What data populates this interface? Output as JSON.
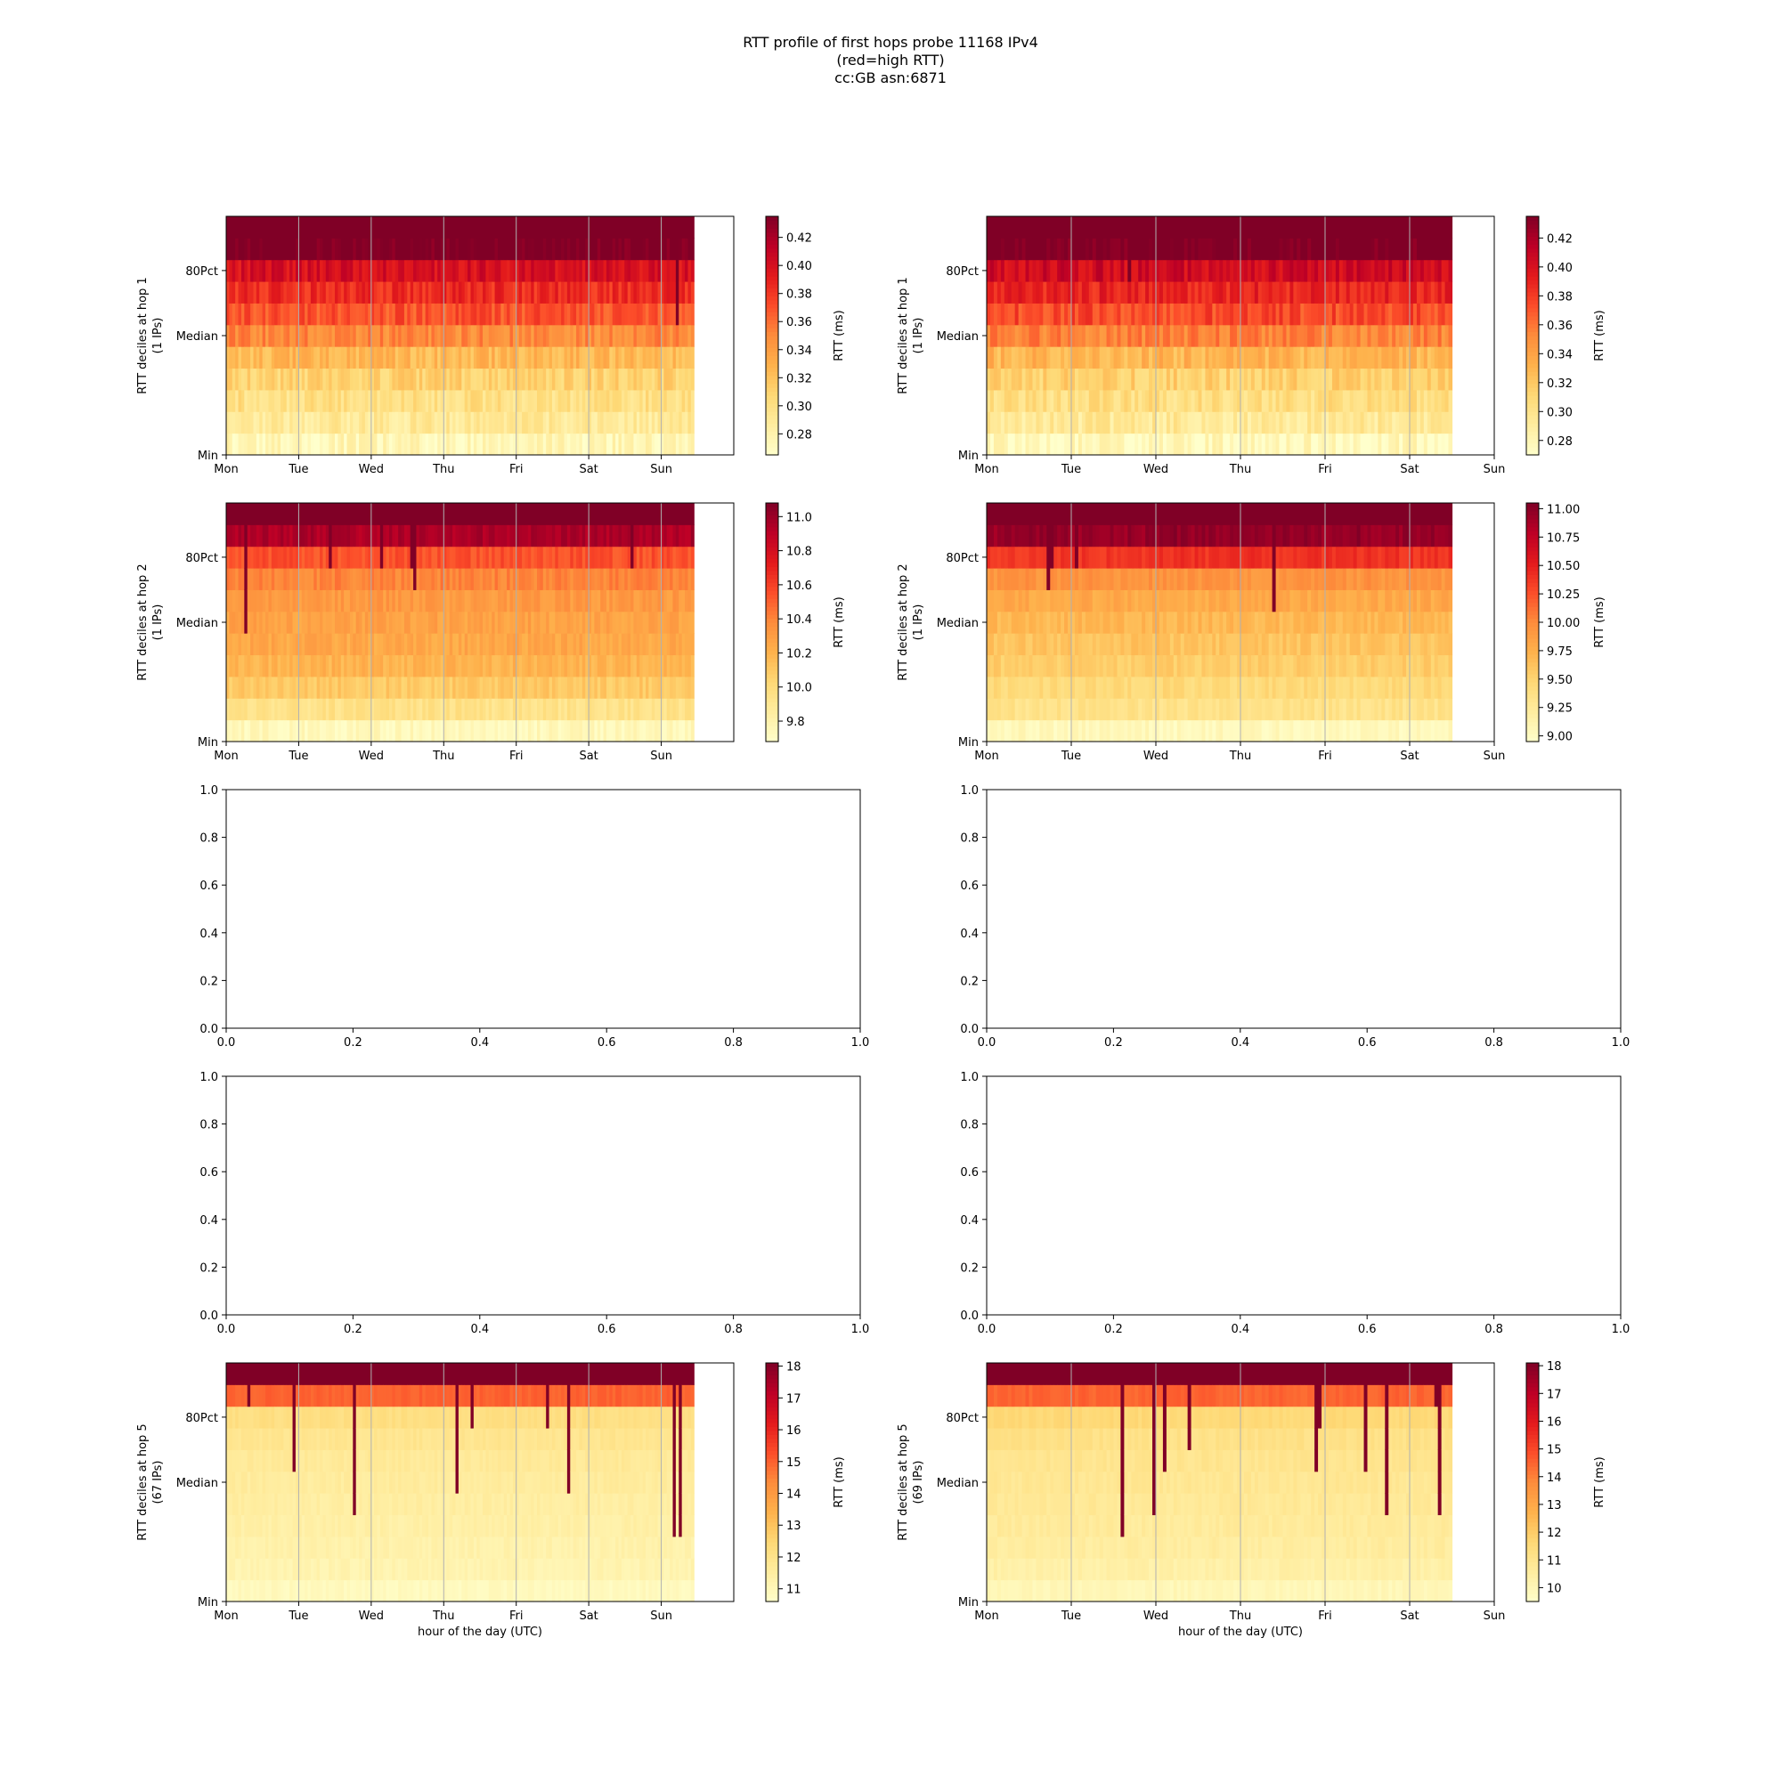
{
  "figure": {
    "title_lines": [
      "RTT profile of first hops probe 11168 IPv4",
      "(red=high RTT)",
      "cc:GB asn:6871"
    ]
  },
  "chart_data": [
    {
      "type": "heatmap",
      "name": "hop 1 left",
      "ylabel_lines": [
        "RTT deciles at hop 1",
        "(1 IPs)"
      ],
      "xlabel": "",
      "xticks": [
        "Mon",
        "Tue",
        "Wed",
        "Thu",
        "Fri",
        "Sat",
        "Sun"
      ],
      "yticks": [
        "Min",
        "Median",
        "80Pct"
      ],
      "x_range_days": [
        0,
        7
      ],
      "data_coverage_days": 6.45,
      "colorbar": {
        "label": "RTT (ms)",
        "min": 0.265,
        "max": 0.435,
        "ticks": [
          "0.28",
          "0.30",
          "0.32",
          "0.34",
          "0.36",
          "0.38",
          "0.40",
          "0.42"
        ],
        "tick_values": [
          0.28,
          0.3,
          0.32,
          0.34,
          0.36,
          0.38,
          0.4,
          0.42
        ]
      },
      "decile_values": [
        0.275,
        0.29,
        0.3,
        0.31,
        0.325,
        0.35,
        0.37,
        0.385,
        0.4,
        0.44,
        0.5
      ],
      "noise": 0.012,
      "spike_prob": 0.01,
      "spike_rows": 4
    },
    {
      "type": "heatmap",
      "name": "hop 1 right",
      "ylabel_lines": [
        "RTT deciles at hop 1",
        "(1 IPs)"
      ],
      "xlabel": "",
      "xticks": [
        "Mon",
        "Tue",
        "Wed",
        "Thu",
        "Fri",
        "Sat",
        "Sun"
      ],
      "yticks": [
        "Min",
        "Median",
        "80Pct"
      ],
      "x_range_days": [
        0,
        6
      ],
      "data_coverage_days": 5.5,
      "colorbar": {
        "label": "RTT (ms)",
        "min": 0.27,
        "max": 0.435,
        "ticks": [
          "0.28",
          "0.30",
          "0.32",
          "0.34",
          "0.36",
          "0.38",
          "0.40",
          "0.42"
        ],
        "tick_values": [
          0.28,
          0.3,
          0.32,
          0.34,
          0.36,
          0.38,
          0.4,
          0.42
        ]
      },
      "decile_values": [
        0.278,
        0.295,
        0.305,
        0.315,
        0.33,
        0.355,
        0.375,
        0.39,
        0.405,
        0.44,
        0.5
      ],
      "noise": 0.012,
      "spike_prob": 0.01,
      "spike_rows": 4
    },
    {
      "type": "heatmap",
      "name": "hop 2 left",
      "ylabel_lines": [
        "RTT deciles at hop 2",
        "(1 IPs)"
      ],
      "xlabel": "",
      "xticks": [
        "Mon",
        "Tue",
        "Wed",
        "Thu",
        "Fri",
        "Sat",
        "Sun"
      ],
      "yticks": [
        "Min",
        "Median",
        "80Pct"
      ],
      "x_range_days": [
        0,
        7
      ],
      "data_coverage_days": 6.45,
      "colorbar": {
        "label": "RTT (ms)",
        "min": 9.68,
        "max": 11.08,
        "ticks": [
          "9.8",
          "10.0",
          "10.2",
          "10.4",
          "10.6",
          "10.8",
          "11.0"
        ],
        "tick_values": [
          9.8,
          10.0,
          10.2,
          10.4,
          10.6,
          10.8,
          11.0
        ]
      },
      "decile_values": [
        9.75,
        9.95,
        10.1,
        10.2,
        10.25,
        10.28,
        10.32,
        10.4,
        10.55,
        10.95,
        11.2
      ],
      "noise": 0.06,
      "spike_prob": 0.06,
      "spike_rows": 6
    },
    {
      "type": "heatmap",
      "name": "hop 2 right",
      "ylabel_lines": [
        "RTT deciles at hop 2",
        "(1 IPs)"
      ],
      "xlabel": "",
      "xticks": [
        "Mon",
        "Tue",
        "Wed",
        "Thu",
        "Fri",
        "Sat",
        "Sun"
      ],
      "yticks": [
        "Min",
        "Median",
        "80Pct"
      ],
      "x_range_days": [
        0,
        6
      ],
      "data_coverage_days": 5.5,
      "colorbar": {
        "label": "RTT (ms)",
        "min": 8.95,
        "max": 11.05,
        "ticks": [
          "9.00",
          "9.25",
          "9.50",
          "9.75",
          "10.00",
          "10.25",
          "10.50",
          "10.75",
          "11.00"
        ],
        "tick_values": [
          9.0,
          9.25,
          9.5,
          9.75,
          10.0,
          10.25,
          10.5,
          10.75,
          11.0
        ]
      },
      "decile_values": [
        9.05,
        9.35,
        9.45,
        9.55,
        9.62,
        9.7,
        9.8,
        9.95,
        10.4,
        10.95,
        11.2
      ],
      "noise": 0.08,
      "spike_prob": 0.06,
      "spike_rows": 6
    },
    {
      "type": "heatmap",
      "name": "hop 5 left",
      "ylabel_lines": [
        "RTT deciles at hop 5",
        "(67 IPs)"
      ],
      "xlabel": "hour of the day (UTC)",
      "xticks": [
        "Mon",
        "Tue",
        "Wed",
        "Thu",
        "Fri",
        "Sat",
        "Sun"
      ],
      "yticks": [
        "Min",
        "Median",
        "80Pct"
      ],
      "x_range_days": [
        0,
        7
      ],
      "data_coverage_days": 6.45,
      "colorbar": {
        "label": "RTT (ms)",
        "min": 10.6,
        "max": 18.1,
        "ticks": [
          "11",
          "12",
          "13",
          "14",
          "15",
          "16",
          "17",
          "18"
        ],
        "tick_values": [
          11,
          12,
          13,
          14,
          15,
          16,
          17,
          18
        ]
      },
      "decile_values": [
        10.9,
        11.2,
        11.3,
        11.4,
        11.5,
        11.6,
        11.7,
        11.9,
        12.2,
        15.0,
        19.0
      ],
      "noise": 0.15,
      "spike_prob": 0.07,
      "spike_rows": 7
    },
    {
      "type": "heatmap",
      "name": "hop 5 right",
      "ylabel_lines": [
        "RTT deciles at hop 5",
        "(69 IPs)"
      ],
      "xlabel": "hour of the day (UTC)",
      "xticks": [
        "Mon",
        "Tue",
        "Wed",
        "Thu",
        "Fri",
        "Sat",
        "Sun"
      ],
      "yticks": [
        "Min",
        "Median",
        "80Pct"
      ],
      "x_range_days": [
        0,
        6
      ],
      "data_coverage_days": 5.5,
      "colorbar": {
        "label": "RTT (ms)",
        "min": 9.5,
        "max": 18.1,
        "ticks": [
          "10",
          "11",
          "12",
          "13",
          "14",
          "15",
          "16",
          "17",
          "18"
        ],
        "tick_values": [
          10,
          11,
          12,
          13,
          14,
          15,
          16,
          17,
          18
        ]
      },
      "decile_values": [
        10.0,
        10.4,
        10.6,
        10.7,
        10.8,
        10.9,
        11.0,
        11.2,
        11.6,
        14.5,
        19.0
      ],
      "noise": 0.18,
      "spike_prob": 0.07,
      "spike_rows": 7
    },
    {
      "type": "empty",
      "name": "hop 3 left",
      "xticks": [
        "0.0",
        "0.2",
        "0.4",
        "0.6",
        "0.8",
        "1.0"
      ],
      "yticks": [
        "0.0",
        "0.2",
        "0.4",
        "0.6",
        "0.8",
        "1.0"
      ],
      "tick_values": [
        0,
        0.2,
        0.4,
        0.6,
        0.8,
        1.0
      ],
      "xlim": [
        0,
        1
      ],
      "ylim": [
        0,
        1
      ]
    },
    {
      "type": "empty",
      "name": "hop 3 right",
      "xticks": [
        "0.0",
        "0.2",
        "0.4",
        "0.6",
        "0.8",
        "1.0"
      ],
      "yticks": [
        "0.0",
        "0.2",
        "0.4",
        "0.6",
        "0.8",
        "1.0"
      ],
      "tick_values": [
        0,
        0.2,
        0.4,
        0.6,
        0.8,
        1.0
      ],
      "xlim": [
        0,
        1
      ],
      "ylim": [
        0,
        1
      ]
    },
    {
      "type": "empty",
      "name": "hop 4 left",
      "xticks": [
        "0.0",
        "0.2",
        "0.4",
        "0.6",
        "0.8",
        "1.0"
      ],
      "yticks": [
        "0.0",
        "0.2",
        "0.4",
        "0.6",
        "0.8",
        "1.0"
      ],
      "tick_values": [
        0,
        0.2,
        0.4,
        0.6,
        0.8,
        1.0
      ],
      "xlim": [
        0,
        1
      ],
      "ylim": [
        0,
        1
      ]
    },
    {
      "type": "empty",
      "name": "hop 4 right",
      "xticks": [
        "0.0",
        "0.2",
        "0.4",
        "0.6",
        "0.8",
        "1.0"
      ],
      "yticks": [
        "0.0",
        "0.2",
        "0.4",
        "0.6",
        "0.8",
        "1.0"
      ],
      "tick_values": [
        0,
        0.2,
        0.4,
        0.6,
        0.8,
        1.0
      ],
      "xlim": [
        0,
        1
      ],
      "ylim": [
        0,
        1
      ]
    }
  ]
}
